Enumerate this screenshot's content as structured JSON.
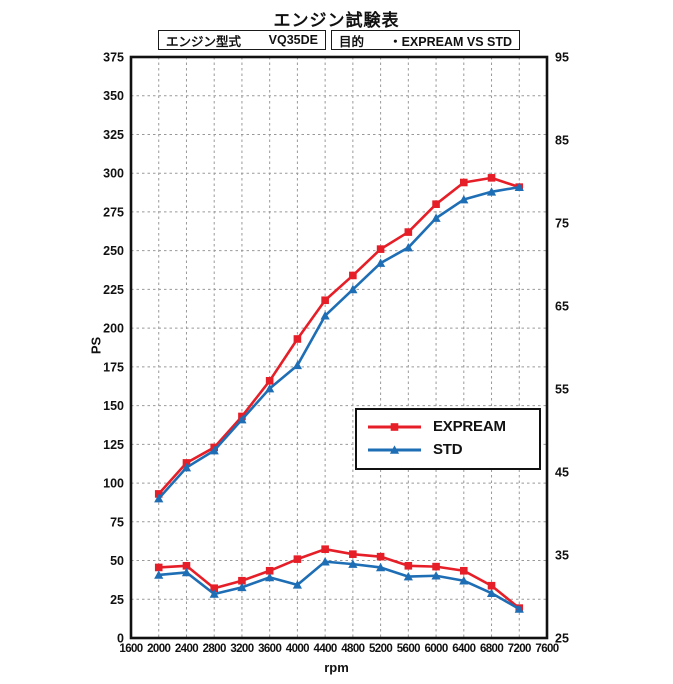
{
  "title": "エンジン試験表",
  "header": {
    "engine_label": "エンジン型式",
    "engine_value": "VQ35DE",
    "purpose_label": "目的",
    "purpose_value": "・EXPREAM VS STD"
  },
  "colors": {
    "expream": "#e61e28",
    "std": "#1e6eb5",
    "grid": "#999999",
    "frame": "#111111"
  },
  "chart_data": {
    "type": "line",
    "title": "エンジン試験表",
    "xlabel": "rpm",
    "x_ticks": [
      1600,
      2000,
      2400,
      2800,
      3200,
      3600,
      4000,
      4400,
      4800,
      5200,
      5600,
      6000,
      6400,
      6800,
      7200,
      7600
    ],
    "x": [
      2000,
      2400,
      2800,
      3200,
      3600,
      4000,
      4400,
      4800,
      5200,
      5600,
      6000,
      6400,
      6800,
      7200
    ],
    "left_axis": {
      "label": "PS",
      "min": 0,
      "max": 375,
      "ticks": [
        0,
        25,
        50,
        75,
        100,
        125,
        150,
        175,
        200,
        225,
        250,
        275,
        300,
        325,
        350,
        375
      ]
    },
    "right_axis": {
      "min": 25,
      "max": 95,
      "ticks": [
        25,
        35,
        45,
        55,
        65,
        75,
        85,
        95
      ]
    },
    "grid": "dashed",
    "legend_position": "inside lower-right of upper curves",
    "series": [
      {
        "name": "EXPREAM",
        "color": "#e61e28",
        "marker": "square",
        "power_ps_left_axis": [
          93,
          113,
          123,
          143,
          166,
          193,
          218,
          234,
          251,
          262,
          280,
          294,
          297,
          291
        ],
        "torque_right_axis": [
          33.5,
          33.7,
          31.0,
          31.9,
          33.1,
          34.5,
          35.7,
          35.1,
          34.8,
          33.7,
          33.6,
          33.1,
          31.3,
          28.6
        ]
      },
      {
        "name": "STD",
        "color": "#1e6eb5",
        "marker": "triangle",
        "power_ps_left_axis": [
          90,
          110,
          121,
          141,
          161,
          176,
          208,
          225,
          242,
          252,
          271,
          283,
          288,
          291
        ],
        "torque_right_axis": [
          32.6,
          32.9,
          30.3,
          31.1,
          32.3,
          31.4,
          34.2,
          33.9,
          33.5,
          32.4,
          32.5,
          31.9,
          30.4,
          28.5
        ]
      }
    ]
  }
}
